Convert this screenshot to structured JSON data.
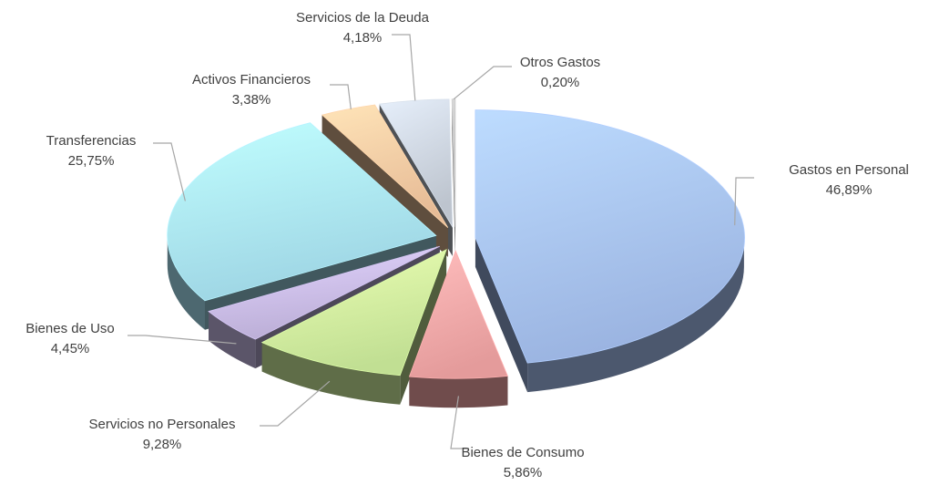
{
  "chart_data": {
    "type": "pie",
    "categories": [
      "Gastos en Personal",
      "Bienes de Consumo",
      "Servicios no Personales",
      "Bienes de Uso",
      "Transferencias",
      "Activos Financieros",
      "Servicios de la Deuda",
      "Otros Gastos"
    ],
    "values": [
      46.89,
      5.86,
      9.28,
      4.45,
      25.75,
      3.38,
      4.18,
      0.2
    ],
    "value_labels": [
      "46,89%",
      "5,86%",
      "9,28%",
      "4,45%",
      "25,75%",
      "3,38%",
      "4,18%",
      "0,20%"
    ],
    "colors": [
      "#a9c4f5",
      "#f8a9a9",
      "#d2f2a0",
      "#cbbde9",
      "#ace8f8",
      "#fbcca4",
      "#cdd5e0",
      "#c4c4c4"
    ]
  }
}
